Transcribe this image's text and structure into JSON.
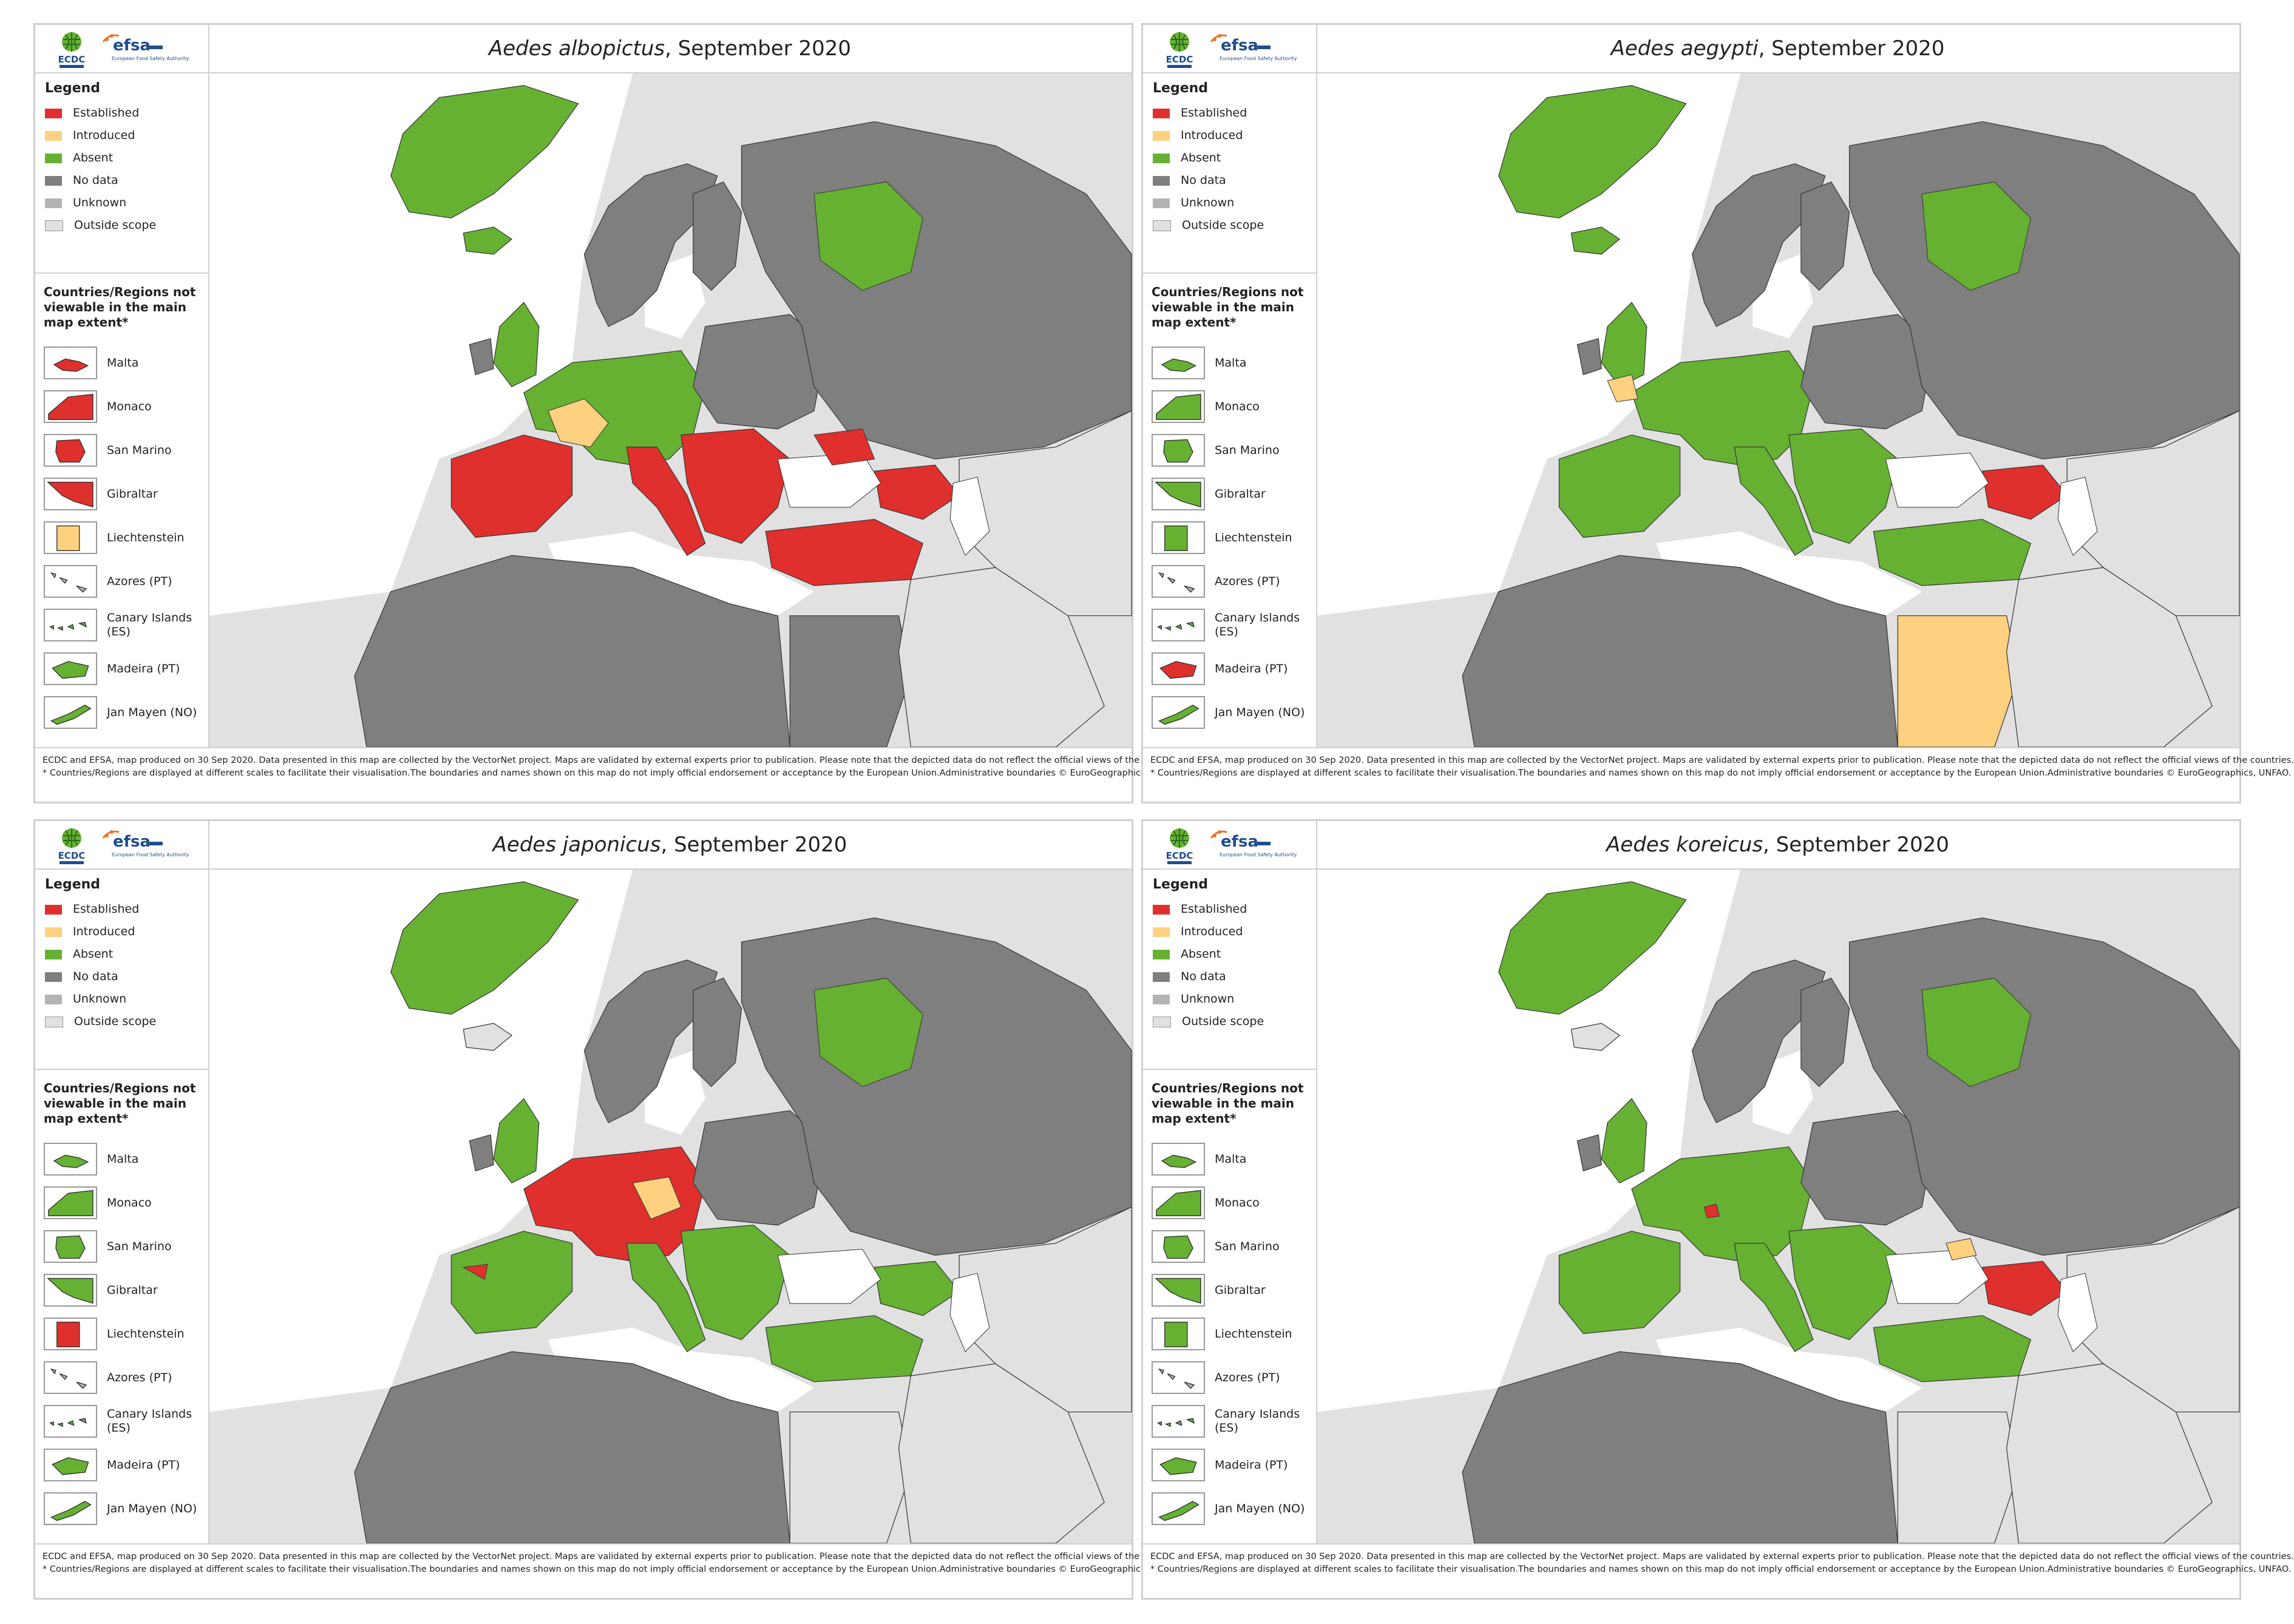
{
  "panels": [
    {
      "species": "Aedes albopictus",
      "date": ", September 2020",
      "scheme": "albopictus",
      "regions": [
        {
          "label": "Malta",
          "status": "established"
        },
        {
          "label": "Monaco",
          "status": "established"
        },
        {
          "label": "San Marino",
          "status": "established"
        },
        {
          "label": "Gibraltar",
          "status": "established"
        },
        {
          "label": "Liechtenstein",
          "status": "introduced"
        },
        {
          "label": "Azores (PT)",
          "status": "unknown"
        },
        {
          "label": "Canary Islands (ES)",
          "status": "absent"
        },
        {
          "label": "Madeira (PT)",
          "status": "absent"
        },
        {
          "label": "Jan Mayen (NO)",
          "status": "absent"
        }
      ]
    },
    {
      "species": "Aedes aegypti",
      "date": ", September 2020",
      "scheme": "aegypti",
      "regions": [
        {
          "label": "Malta",
          "status": "absent"
        },
        {
          "label": "Monaco",
          "status": "absent"
        },
        {
          "label": "San Marino",
          "status": "absent"
        },
        {
          "label": "Gibraltar",
          "status": "absent"
        },
        {
          "label": "Liechtenstein",
          "status": "absent"
        },
        {
          "label": "Azores (PT)",
          "status": "unknown"
        },
        {
          "label": "Canary Islands (ES)",
          "status": "absent"
        },
        {
          "label": "Madeira (PT)",
          "status": "established"
        },
        {
          "label": "Jan Mayen (NO)",
          "status": "absent"
        }
      ]
    },
    {
      "species": "Aedes japonicus",
      "date": ", September 2020",
      "scheme": "japonicus",
      "regions": [
        {
          "label": "Malta",
          "status": "absent"
        },
        {
          "label": "Monaco",
          "status": "absent"
        },
        {
          "label": "San Marino",
          "status": "absent"
        },
        {
          "label": "Gibraltar",
          "status": "absent"
        },
        {
          "label": "Liechtenstein",
          "status": "established"
        },
        {
          "label": "Azores (PT)",
          "status": "unknown"
        },
        {
          "label": "Canary Islands (ES)",
          "status": "absent"
        },
        {
          "label": "Madeira (PT)",
          "status": "absent"
        },
        {
          "label": "Jan Mayen (NO)",
          "status": "absent"
        }
      ]
    },
    {
      "species": "Aedes koreicus",
      "date": ", September 2020",
      "scheme": "koreicus",
      "regions": [
        {
          "label": "Malta",
          "status": "absent"
        },
        {
          "label": "Monaco",
          "status": "absent"
        },
        {
          "label": "San Marino",
          "status": "absent"
        },
        {
          "label": "Gibraltar",
          "status": "absent"
        },
        {
          "label": "Liechtenstein",
          "status": "absent"
        },
        {
          "label": "Azores (PT)",
          "status": "unknown"
        },
        {
          "label": "Canary Islands (ES)",
          "status": "absent"
        },
        {
          "label": "Madeira (PT)",
          "status": "absent"
        },
        {
          "label": "Jan Mayen (NO)",
          "status": "absent"
        }
      ]
    }
  ],
  "legend": {
    "title": "Legend",
    "items": [
      {
        "key": "established",
        "label": "Established",
        "color": "#e0302e"
      },
      {
        "key": "introduced",
        "label": "Introduced",
        "color": "#fdd17f"
      },
      {
        "key": "absent",
        "label": "Absent",
        "color": "#66b132"
      },
      {
        "key": "nodata",
        "label": "No data",
        "color": "#7f7f7f"
      },
      {
        "key": "unknown",
        "label": "Unknown",
        "color": "#b3b3b3"
      },
      {
        "key": "outside",
        "label": "Outside scope",
        "color": "#e1e1e1"
      }
    ]
  },
  "regions_title": "Countries/Regions not viewable in the main map extent*",
  "logos": {
    "ecdc": "ECDC",
    "efsa": "efsa",
    "efsa_sub": "European Food Safety Authority"
  },
  "footer": {
    "line1": "ECDC and EFSA, map produced on 30 Sep 2020. Data presented in this map are collected by the VectorNet project. Maps are validated by external experts prior to publication. Please note that the depicted data do not reflect the official views of the countries.",
    "line2": "* Countries/Regions are displayed at different scales to facilitate their visualisation.The boundaries and names shown on this map do not imply official endorsement or acceptance by the European Union.Administrative boundaries © EuroGeographics, UNFAO."
  }
}
